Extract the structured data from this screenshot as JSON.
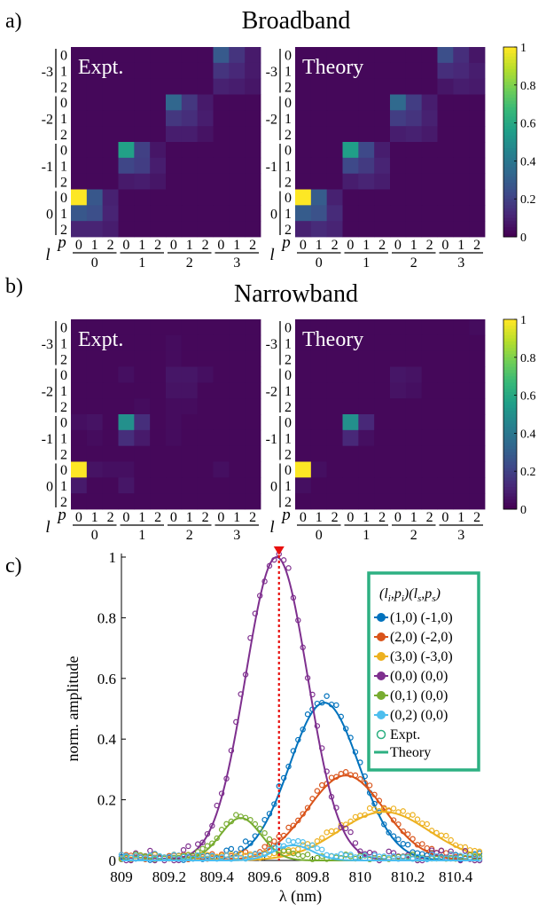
{
  "panel_labels": {
    "a": "a)",
    "b": "b)",
    "c": "c)"
  },
  "titles": {
    "broadband": "Broadband",
    "narrowband": "Narrowband"
  },
  "heatmap_labels": {
    "expt": "Expt.",
    "theory": "Theory"
  },
  "axis_symbols": {
    "l": "l",
    "p": "p"
  },
  "colorbar_ticks": [
    "0",
    "0.2",
    "0.4",
    "0.6",
    "0.8",
    "1"
  ],
  "colors": {
    "low": "#440154",
    "high": "#fde725",
    "legend_frame": "#2db082",
    "marker": "#e8100f",
    "expt_marker": "#2db082"
  },
  "chart_data": [
    {
      "type": "heatmap",
      "panel": "a",
      "title": "Broadband",
      "label": "Expt.",
      "row_groups": [
        {
          "l": "-3",
          "p": [
            "0",
            "1",
            "2"
          ]
        },
        {
          "l": "-2",
          "p": [
            "0",
            "1",
            "2"
          ]
        },
        {
          "l": "-1",
          "p": [
            "0",
            "1",
            "2"
          ]
        },
        {
          "l": "0",
          "p": [
            "0",
            "1",
            "2"
          ]
        }
      ],
      "col_groups": [
        {
          "l": "0",
          "p": [
            "0",
            "1",
            "2"
          ]
        },
        {
          "l": "1",
          "p": [
            "0",
            "1",
            "2"
          ]
        },
        {
          "l": "2",
          "p": [
            "0",
            "1",
            "2"
          ]
        },
        {
          "l": "3",
          "p": [
            "0",
            "1",
            "2"
          ]
        }
      ],
      "values": [
        [
          0.02,
          0.02,
          0.02,
          0.02,
          0.02,
          0.02,
          0.02,
          0.02,
          0.02,
          0.28,
          0.15,
          0.07
        ],
        [
          0.02,
          0.02,
          0.02,
          0.02,
          0.02,
          0.02,
          0.02,
          0.02,
          0.02,
          0.15,
          0.11,
          0.07
        ],
        [
          0.02,
          0.02,
          0.02,
          0.02,
          0.02,
          0.02,
          0.02,
          0.02,
          0.02,
          0.09,
          0.08,
          0.06
        ],
        [
          0.02,
          0.02,
          0.02,
          0.02,
          0.02,
          0.02,
          0.33,
          0.16,
          0.07,
          0.02,
          0.02,
          0.02
        ],
        [
          0.02,
          0.02,
          0.02,
          0.02,
          0.02,
          0.02,
          0.16,
          0.13,
          0.08,
          0.02,
          0.02,
          0.02
        ],
        [
          0.02,
          0.02,
          0.02,
          0.02,
          0.02,
          0.02,
          0.08,
          0.08,
          0.05,
          0.02,
          0.02,
          0.02
        ],
        [
          0.02,
          0.02,
          0.02,
          0.57,
          0.19,
          0.06,
          0.02,
          0.02,
          0.02,
          0.02,
          0.02,
          0.02
        ],
        [
          0.02,
          0.02,
          0.02,
          0.21,
          0.18,
          0.08,
          0.02,
          0.02,
          0.02,
          0.02,
          0.02,
          0.02
        ],
        [
          0.02,
          0.02,
          0.02,
          0.07,
          0.08,
          0.06,
          0.02,
          0.02,
          0.02,
          0.02,
          0.02,
          0.02
        ],
        [
          1.0,
          0.27,
          0.09,
          0.02,
          0.02,
          0.02,
          0.02,
          0.02,
          0.02,
          0.02,
          0.02,
          0.02
        ],
        [
          0.27,
          0.24,
          0.1,
          0.02,
          0.02,
          0.02,
          0.02,
          0.02,
          0.02,
          0.02,
          0.02,
          0.02
        ],
        [
          0.1,
          0.1,
          0.08,
          0.02,
          0.02,
          0.02,
          0.02,
          0.02,
          0.02,
          0.02,
          0.02,
          0.02
        ]
      ]
    },
    {
      "type": "heatmap",
      "panel": "a",
      "title": "Broadband",
      "label": "Theory",
      "values": [
        [
          0.02,
          0.02,
          0.02,
          0.02,
          0.02,
          0.02,
          0.02,
          0.02,
          0.02,
          0.24,
          0.13,
          0.06
        ],
        [
          0.02,
          0.02,
          0.02,
          0.02,
          0.02,
          0.02,
          0.02,
          0.02,
          0.02,
          0.13,
          0.11,
          0.08
        ],
        [
          0.02,
          0.02,
          0.02,
          0.02,
          0.02,
          0.02,
          0.02,
          0.02,
          0.02,
          0.06,
          0.08,
          0.07
        ],
        [
          0.02,
          0.02,
          0.02,
          0.02,
          0.02,
          0.02,
          0.34,
          0.18,
          0.08,
          0.02,
          0.02,
          0.02
        ],
        [
          0.02,
          0.02,
          0.02,
          0.02,
          0.02,
          0.02,
          0.18,
          0.15,
          0.09,
          0.02,
          0.02,
          0.02
        ],
        [
          0.02,
          0.02,
          0.02,
          0.02,
          0.02,
          0.02,
          0.08,
          0.09,
          0.07,
          0.02,
          0.02,
          0.02
        ],
        [
          0.02,
          0.02,
          0.02,
          0.56,
          0.22,
          0.08,
          0.02,
          0.02,
          0.02,
          0.02,
          0.02,
          0.02
        ],
        [
          0.02,
          0.02,
          0.02,
          0.22,
          0.17,
          0.1,
          0.02,
          0.02,
          0.02,
          0.02,
          0.02,
          0.02
        ],
        [
          0.02,
          0.02,
          0.02,
          0.08,
          0.1,
          0.08,
          0.02,
          0.02,
          0.02,
          0.02,
          0.02,
          0.02
        ],
        [
          1.0,
          0.29,
          0.09,
          0.02,
          0.02,
          0.02,
          0.02,
          0.02,
          0.02,
          0.02,
          0.02,
          0.02
        ],
        [
          0.29,
          0.25,
          0.12,
          0.02,
          0.02,
          0.02,
          0.02,
          0.02,
          0.02,
          0.02,
          0.02,
          0.02
        ],
        [
          0.09,
          0.12,
          0.1,
          0.02,
          0.02,
          0.02,
          0.02,
          0.02,
          0.02,
          0.02,
          0.02,
          0.02
        ]
      ]
    },
    {
      "type": "heatmap",
      "panel": "b",
      "title": "Narrowband",
      "label": "Expt.",
      "values": [
        [
          0.02,
          0.02,
          0.02,
          0.02,
          0.02,
          0.02,
          0.02,
          0.02,
          0.02,
          0.02,
          0.02,
          0.02
        ],
        [
          0.02,
          0.02,
          0.02,
          0.02,
          0.02,
          0.02,
          0.03,
          0.02,
          0.02,
          0.02,
          0.02,
          0.02
        ],
        [
          0.02,
          0.02,
          0.02,
          0.02,
          0.02,
          0.02,
          0.03,
          0.02,
          0.02,
          0.02,
          0.02,
          0.02
        ],
        [
          0.02,
          0.02,
          0.02,
          0.04,
          0.02,
          0.02,
          0.06,
          0.06,
          0.04,
          0.02,
          0.02,
          0.02
        ],
        [
          0.02,
          0.02,
          0.02,
          0.02,
          0.02,
          0.02,
          0.05,
          0.05,
          0.02,
          0.02,
          0.02,
          0.02
        ],
        [
          0.02,
          0.02,
          0.02,
          0.02,
          0.03,
          0.02,
          0.03,
          0.03,
          0.02,
          0.02,
          0.02,
          0.02
        ],
        [
          0.04,
          0.05,
          0.02,
          0.5,
          0.13,
          0.02,
          0.03,
          0.02,
          0.02,
          0.02,
          0.02,
          0.02
        ],
        [
          0.02,
          0.03,
          0.02,
          0.13,
          0.07,
          0.02,
          0.03,
          0.02,
          0.02,
          0.02,
          0.02,
          0.02
        ],
        [
          0.02,
          0.02,
          0.02,
          0.02,
          0.02,
          0.02,
          0.02,
          0.02,
          0.02,
          0.02,
          0.02,
          0.02
        ],
        [
          1.0,
          0.05,
          0.04,
          0.04,
          0.02,
          0.02,
          0.02,
          0.02,
          0.02,
          0.04,
          0.02,
          0.02
        ],
        [
          0.07,
          0.02,
          0.02,
          0.06,
          0.02,
          0.02,
          0.02,
          0.02,
          0.02,
          0.02,
          0.02,
          0.02
        ],
        [
          0.02,
          0.02,
          0.02,
          0.02,
          0.02,
          0.02,
          0.02,
          0.02,
          0.02,
          0.02,
          0.02,
          0.02
        ]
      ]
    },
    {
      "type": "heatmap",
      "panel": "b",
      "title": "Narrowband",
      "label": "Theory",
      "values": [
        [
          0.02,
          0.02,
          0.02,
          0.02,
          0.02,
          0.02,
          0.02,
          0.02,
          0.02,
          0.02,
          0.02,
          0.03
        ],
        [
          0.02,
          0.02,
          0.02,
          0.02,
          0.02,
          0.02,
          0.02,
          0.02,
          0.02,
          0.02,
          0.02,
          0.02
        ],
        [
          0.02,
          0.02,
          0.02,
          0.02,
          0.02,
          0.02,
          0.02,
          0.02,
          0.02,
          0.02,
          0.02,
          0.02
        ],
        [
          0.02,
          0.02,
          0.02,
          0.02,
          0.02,
          0.02,
          0.06,
          0.05,
          0.02,
          0.02,
          0.02,
          0.02
        ],
        [
          0.02,
          0.02,
          0.02,
          0.02,
          0.02,
          0.02,
          0.05,
          0.04,
          0.02,
          0.02,
          0.02,
          0.02
        ],
        [
          0.02,
          0.02,
          0.02,
          0.02,
          0.02,
          0.02,
          0.02,
          0.02,
          0.02,
          0.02,
          0.02,
          0.02
        ],
        [
          0.02,
          0.02,
          0.02,
          0.5,
          0.11,
          0.02,
          0.02,
          0.02,
          0.02,
          0.02,
          0.02,
          0.02
        ],
        [
          0.02,
          0.02,
          0.02,
          0.11,
          0.04,
          0.02,
          0.02,
          0.02,
          0.02,
          0.02,
          0.02,
          0.02
        ],
        [
          0.02,
          0.02,
          0.02,
          0.02,
          0.02,
          0.02,
          0.02,
          0.02,
          0.02,
          0.02,
          0.02,
          0.02
        ],
        [
          1.0,
          0.04,
          0.02,
          0.02,
          0.02,
          0.02,
          0.02,
          0.02,
          0.02,
          0.02,
          0.02,
          0.02
        ],
        [
          0.04,
          0.02,
          0.02,
          0.02,
          0.02,
          0.02,
          0.02,
          0.02,
          0.02,
          0.02,
          0.02,
          0.02
        ],
        [
          0.02,
          0.02,
          0.02,
          0.02,
          0.02,
          0.02,
          0.02,
          0.02,
          0.02,
          0.02,
          0.02,
          0.02
        ]
      ]
    },
    {
      "type": "line",
      "panel": "c",
      "xlabel": "λ (nm)",
      "ylabel": "norm. amplitude",
      "xlim": [
        809,
        810.5
      ],
      "ylim": [
        0,
        1
      ],
      "xticks": [
        "809",
        "809.2",
        "809.4",
        "809.6",
        "809.8",
        "810",
        "810.2",
        "810.4"
      ],
      "yticks": [
        "0",
        "0.2",
        "0.4",
        "0.6",
        "0.8",
        "1"
      ],
      "marker_x": 809.66,
      "legend": {
        "header": "(l",
        "header_items": [
          {
            "t": "(l"
          },
          {
            "t": "i",
            "sub": true
          },
          {
            "t": ",p"
          },
          {
            "t": "i",
            "sub": true
          },
          {
            "t": ")(l"
          },
          {
            "t": "s",
            "sub": true
          },
          {
            "t": ",p"
          },
          {
            "t": "s",
            "sub": true
          },
          {
            "t": ")"
          }
        ],
        "expt_label": "Expt.",
        "theory_label": "Theory",
        "position": "top-right"
      },
      "series": [
        {
          "name": "(1,0) (-1,0)",
          "color": "#0072bd",
          "peak": 0.52,
          "center": 809.85,
          "width": 0.145
        },
        {
          "name": "(2,0) (-2,0)",
          "color": "#d95319",
          "peak": 0.28,
          "center": 809.94,
          "width": 0.16
        },
        {
          "name": "(3,0) (-3,0)",
          "color": "#edb120",
          "peak": 0.16,
          "center": 810.1,
          "width": 0.19
        },
        {
          "name": "(0,0) (0,0)",
          "color": "#7e2f8e",
          "peak": 1.0,
          "center": 809.65,
          "width": 0.13
        },
        {
          "name": "(0,1) (0,0)",
          "color": "#77ac30",
          "peak": 0.14,
          "center": 809.5,
          "width": 0.085
        },
        {
          "name": "(0,2) (0,0)",
          "color": "#4dbeee",
          "peak": 0.05,
          "center": 809.72,
          "width": 0.08
        }
      ]
    }
  ]
}
